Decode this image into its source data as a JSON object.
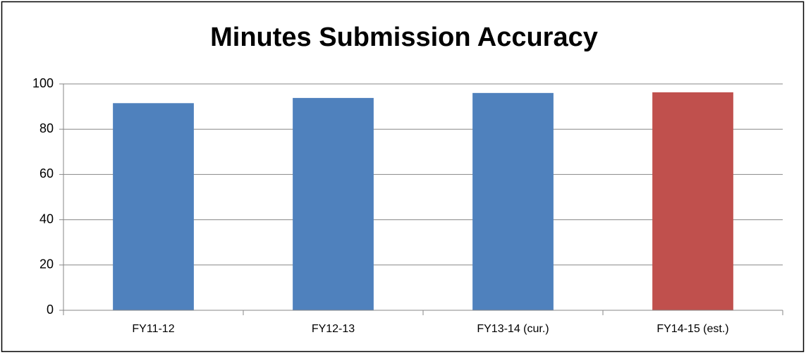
{
  "chart_data": {
    "type": "bar",
    "title": "Minutes Submission Accuracy",
    "categories": [
      "FY11-12",
      "FY12-13",
      "FY13-14 (cur.)",
      "FY14-15 (est.)"
    ],
    "values": [
      91.5,
      93.8,
      96,
      96.3
    ],
    "colors": [
      "#4f81bd",
      "#4f81bd",
      "#4f81bd",
      "#c0504d"
    ],
    "ylim": [
      0,
      100
    ],
    "yticks": [
      0,
      20,
      40,
      60,
      80,
      100
    ],
    "grid": true
  }
}
